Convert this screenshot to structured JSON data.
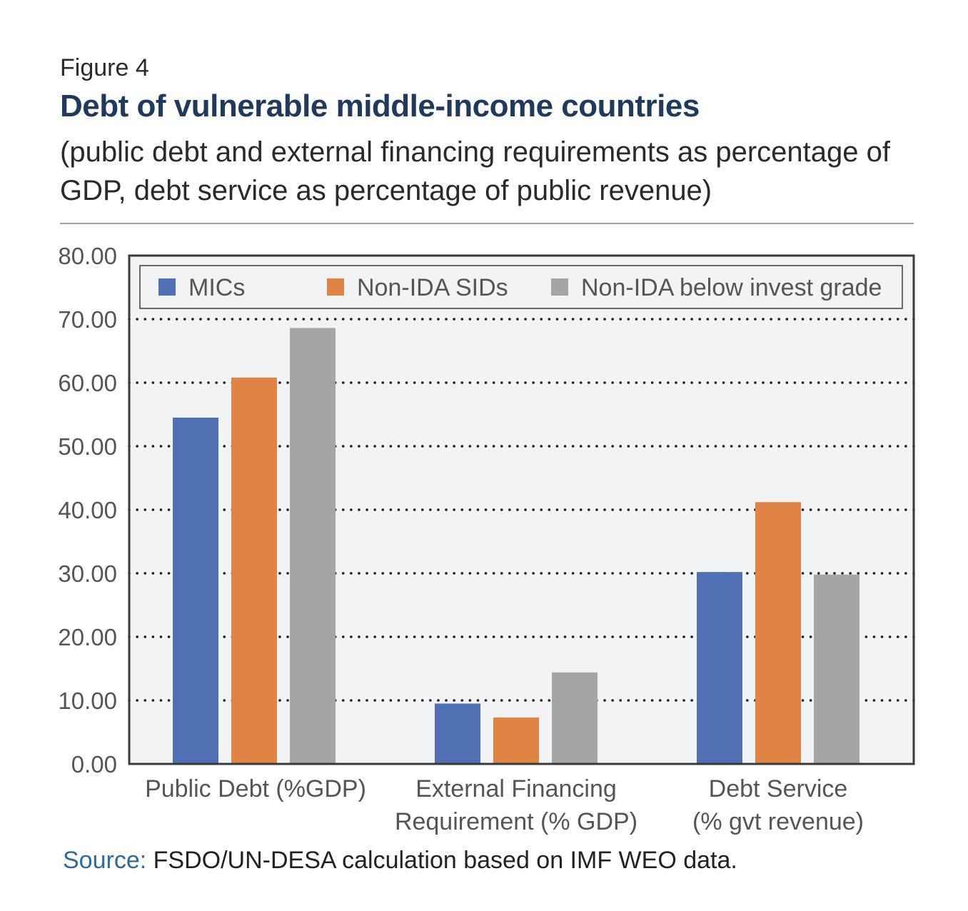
{
  "header": {
    "figure_label": "Figure 4",
    "title": "Debt of vulnerable middle-income countries",
    "subtitle": "(public debt and external financing requirements as percentage of GDP, debt service as percentage of public revenue)"
  },
  "source": {
    "label": "Source:",
    "text": " FSDO/UN-DESA calculation based on IMF WEO data."
  },
  "chart_data": {
    "type": "bar",
    "categories": [
      [
        "Public Debt (%GDP)"
      ],
      [
        "External Financing",
        "Requirement (% GDP)"
      ],
      [
        "Debt Service",
        "(% gvt revenue)"
      ]
    ],
    "series": [
      {
        "name": "MICs",
        "values": [
          54.5,
          9.5,
          30.2
        ],
        "color": "#4f71b3"
      },
      {
        "name": "Non-IDA SIDs",
        "values": [
          60.8,
          7.3,
          41.2
        ],
        "color": "#e08445"
      },
      {
        "name": "Non-IDA below invest grade",
        "values": [
          68.6,
          14.4,
          29.8
        ],
        "color": "#a5a5a5"
      }
    ],
    "ylim": [
      0,
      80
    ],
    "yticks": [
      "0.00",
      "10.00",
      "20.00",
      "30.00",
      "40.00",
      "50.00",
      "60.00",
      "70.00",
      "80.00"
    ],
    "grid": true,
    "legend_position": "top",
    "plot_background": "#f2f3f4"
  }
}
